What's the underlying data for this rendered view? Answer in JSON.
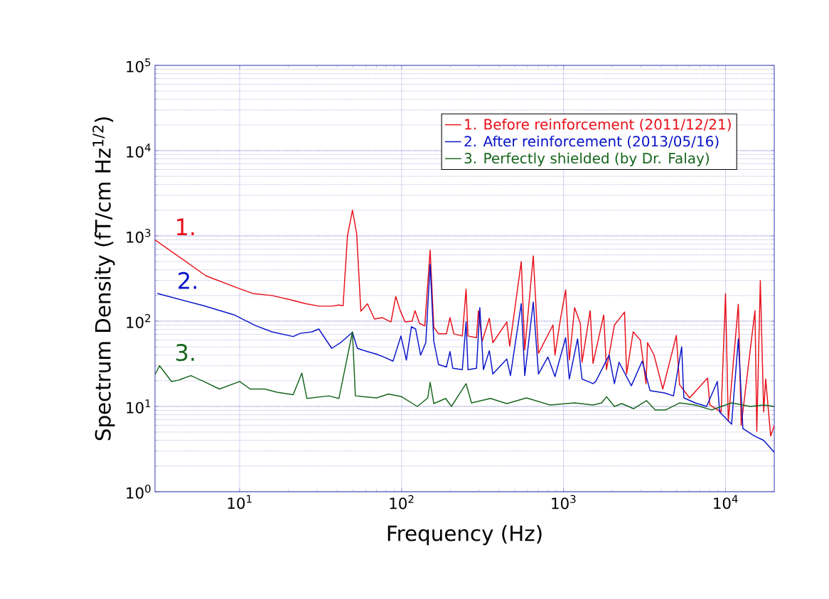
{
  "chart_data": {
    "type": "line",
    "log": "xy",
    "xlabel": "Frequency (Hz)",
    "ylabel": "Spectrum Density (fT/cm Hz$^{1/2}$)",
    "xlim": [
      3,
      20000
    ],
    "ylim": [
      1,
      100000
    ],
    "xticks": [
      {
        "value": 10,
        "label": "10$^{1}$"
      },
      {
        "value": 100,
        "label": "10$^{2}$"
      },
      {
        "value": 1000,
        "label": "10$^{3}$"
      },
      {
        "value": 10000,
        "label": "10$^{4}$"
      }
    ],
    "yticks": [
      {
        "value": 1,
        "label": "10$^{0}$"
      },
      {
        "value": 10,
        "label": "10$^{1}$"
      },
      {
        "value": 100,
        "label": "10$^{2}$"
      },
      {
        "value": 1000,
        "label": "10$^{3}$"
      },
      {
        "value": 10000,
        "label": "10$^{4}$"
      },
      {
        "value": 100000,
        "label": "10$^{5}$"
      }
    ],
    "grid": true,
    "legend": "top right",
    "marker": "none",
    "line_style": "solid",
    "annotations": [
      "1.",
      "2.",
      "3."
    ],
    "series": [
      {
        "name": "1. Before reinforcement (2011/12/21)",
        "color": "#e8101a",
        "x": [
          3.0,
          6.2,
          10,
          12.2,
          15.8,
          20.7,
          25.4,
          31,
          37,
          41,
          43.5,
          46.3,
          49.7,
          52.8,
          56,
          61.5,
          68,
          76,
          86,
          92,
          98,
          105,
          116,
          121,
          129,
          139,
          150,
          158,
          169,
          189,
          199,
          210,
          237,
          250,
          257,
          290,
          298,
          314,
          348,
          366,
          446,
          465,
          548,
          576,
          650,
          700,
          860,
          885,
          950,
          1030,
          1085,
          1170,
          1270,
          1300,
          1460,
          1520,
          1770,
          1840,
          2060,
          2380,
          2450,
          2690,
          2980,
          3230,
          3300,
          3620,
          4100,
          4970,
          5200,
          6000,
          7750,
          8000,
          9400,
          10000,
          10400,
          12000,
          12500,
          15200,
          15600,
          16400,
          17200,
          17700,
          19000,
          20000
        ],
        "values": [
          900,
          340,
          240,
          210,
          200,
          178,
          161,
          150,
          150,
          155,
          152,
          1000,
          2000,
          1050,
          131,
          160,
          106,
          110,
          98,
          195,
          133,
          98,
          100,
          133,
          94,
          88,
          680,
          85,
          71,
          71,
          110,
          71,
          67,
          237,
          67,
          64,
          133,
          58,
          108,
          56,
          98,
          51,
          500,
          46,
          585,
          42,
          90,
          40,
          98,
          233,
          35,
          144,
          94,
          33,
          133,
          32,
          118,
          27,
          90,
          128,
          24,
          75,
          60,
          18.5,
          56,
          40,
          16,
          68,
          18,
          12.6,
          21.5,
          10.4,
          8.6,
          210,
          6.7,
          158,
          6,
          133,
          5.1,
          300,
          8.6,
          21,
          4.5,
          6
        ]
      },
      {
        "name": "2. After reinforcement (2013/05/16)",
        "color": "#0a14c8",
        "x": [
          3.1,
          6.0,
          9.2,
          12.5,
          15.8,
          21.4,
          23.7,
          28,
          30.8,
          37,
          42,
          49.7,
          53.3,
          61.5,
          70,
          77.6,
          88.5,
          99,
          107,
          115,
          122,
          131,
          141,
          150,
          158,
          169,
          189,
          199,
          207,
          237,
          250,
          257,
          290,
          304,
          320,
          348,
          366,
          446,
          470,
          548,
          576,
          650,
          700,
          800,
          885,
          1030,
          1085,
          1220,
          1300,
          1520,
          1580,
          1910,
          2060,
          2200,
          2620,
          3060,
          3420,
          4200,
          4770,
          5360,
          5530,
          6500,
          7640,
          8900,
          9200,
          10900,
          12000,
          12800,
          15100,
          17200,
          20000
        ],
        "values": [
          211,
          152,
          119,
          89,
          75,
          66,
          72,
          75,
          81,
          48,
          56,
          74,
          48,
          44,
          41,
          38,
          34,
          67,
          35,
          86,
          81,
          40,
          56,
          465,
          58,
          31,
          29,
          44,
          28,
          27,
          98,
          27,
          28,
          144,
          27,
          45,
          24,
          36,
          23,
          161,
          23,
          168,
          24,
          38,
          22.4,
          64,
          21,
          62,
          21,
          18.5,
          19.6,
          40,
          18.5,
          33,
          17.5,
          34,
          15.3,
          14.4,
          13.3,
          50,
          12.6,
          11,
          10,
          19.6,
          8.6,
          6.2,
          62,
          5.5,
          4.5,
          4,
          2.9
        ]
      },
      {
        "name": "3. Perfectly shielded (by Dr. Falay)",
        "color": "#16661c",
        "x": [
          3.0,
          3.2,
          3.8,
          4.2,
          5.0,
          6.0,
          7.5,
          10,
          11.6,
          14.3,
          17,
          21.4,
          24.2,
          26,
          35.5,
          41,
          49.7,
          51.8,
          70,
          83,
          100,
          125,
          145,
          150,
          158,
          187,
          203,
          250,
          270,
          354,
          446,
          590,
          825,
          1170,
          1520,
          1720,
          1840,
          2060,
          2290,
          2710,
          3250,
          3680,
          4270,
          5200,
          6500,
          8200,
          10900,
          14200,
          17200,
          20000
        ],
        "values": [
          23.7,
          30,
          19.6,
          20.4,
          23,
          19.6,
          16,
          19.6,
          16,
          16,
          14.7,
          13.7,
          24.6,
          12.4,
          13.3,
          12.4,
          75,
          13.3,
          12.6,
          14,
          13,
          10,
          12.6,
          19.2,
          10.8,
          12.4,
          10,
          18.5,
          11,
          12.4,
          10.8,
          12.6,
          10.4,
          11,
          10.4,
          11,
          13,
          10,
          10.8,
          9.4,
          11.7,
          9.1,
          9.1,
          11,
          10.4,
          9.1,
          11,
          10,
          10.4,
          10
        ]
      }
    ]
  }
}
